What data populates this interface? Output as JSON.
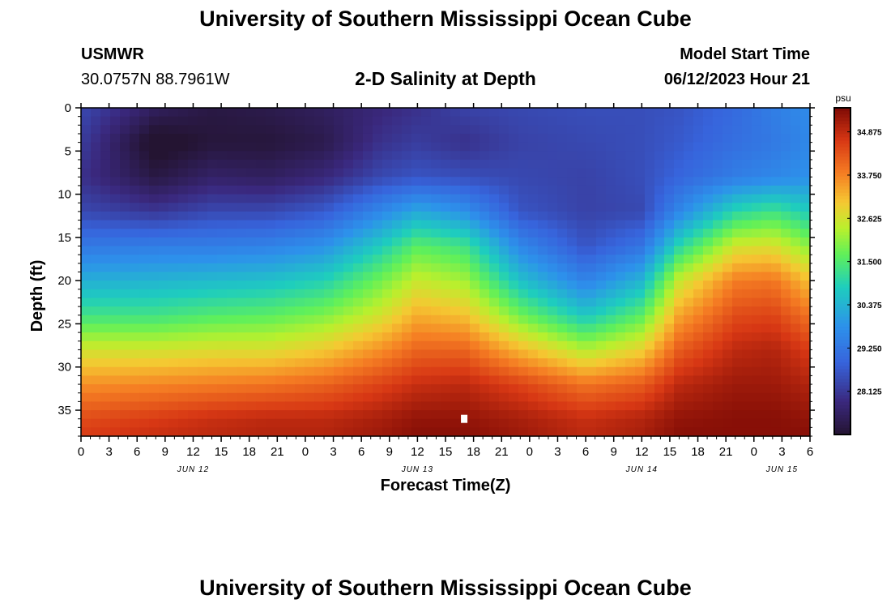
{
  "header": {
    "title": "University of Southern Mississippi Ocean Cube",
    "station": "USMWR",
    "coords": "30.0757N  88.7961W",
    "plot_title": "2-D Salinity at Depth",
    "model_label": "Model Start Time",
    "model_time": "06/12/2023 Hour 21"
  },
  "footer": {
    "title": "University of Southern Mississippi Ocean Cube"
  },
  "chart_data": {
    "type": "heatmap",
    "xlabel": "Forecast Time(Z)",
    "ylabel": "Depth (ft)",
    "x_tick_labels": [
      "0",
      "3",
      "6",
      "9",
      "12",
      "15",
      "18",
      "21",
      "0",
      "3",
      "6",
      "9",
      "12",
      "15",
      "18",
      "21",
      "0",
      "3",
      "6",
      "9",
      "12",
      "15",
      "18",
      "21",
      "0",
      "3",
      "6"
    ],
    "date_labels": [
      {
        "label": "JUN 12",
        "tick_index": 4
      },
      {
        "label": "JUN 13",
        "tick_index": 12
      },
      {
        "label": "JUN 14",
        "tick_index": 20
      },
      {
        "label": "JUN 15",
        "tick_index": 25
      }
    ],
    "xlim_hours": [
      0,
      78
    ],
    "y_ticks": [
      0,
      5,
      10,
      15,
      20,
      25,
      30,
      35
    ],
    "ylim": [
      0,
      38
    ],
    "y_inverted": true,
    "colorbar": {
      "unit": "psu",
      "ticks": [
        "34.875",
        "33.750",
        "32.625",
        "31.500",
        "30.375",
        "29.250",
        "28.125"
      ],
      "range": [
        27.0,
        35.5
      ]
    },
    "marker": {
      "hour": 41,
      "depth": 36
    },
    "z_profiles": {
      "hours": [
        0,
        8,
        14,
        20,
        26,
        32,
        36,
        41,
        47,
        54,
        60,
        64,
        70,
        74,
        78
      ],
      "depths": [
        0,
        4,
        8,
        12,
        16,
        20,
        24,
        28,
        32,
        36,
        38
      ],
      "rows": [
        [
          28.4,
          27.5,
          27.2,
          27.3,
          27.5,
          27.8,
          28.0,
          28.3,
          28.4,
          28.5,
          28.5,
          28.6,
          29.0,
          29.4,
          29.7
        ],
        [
          28.2,
          26.8,
          27.1,
          27.1,
          27.3,
          28.0,
          28.2,
          28.0,
          28.3,
          28.4,
          28.5,
          28.7,
          29.1,
          29.3,
          29.6
        ],
        [
          28.0,
          27.2,
          27.6,
          27.5,
          27.8,
          28.4,
          28.6,
          28.5,
          28.4,
          28.3,
          28.5,
          28.9,
          29.4,
          29.6,
          29.8
        ],
        [
          28.4,
          28.1,
          28.4,
          28.4,
          28.7,
          29.6,
          30.2,
          29.8,
          28.6,
          28.3,
          28.4,
          29.6,
          31.0,
          31.3,
          30.8
        ],
        [
          29.3,
          29.4,
          29.4,
          29.5,
          29.8,
          30.8,
          31.6,
          31.3,
          29.6,
          28.6,
          29.2,
          31.0,
          32.6,
          32.7,
          32.0
        ],
        [
          30.3,
          30.4,
          30.5,
          30.6,
          30.9,
          31.8,
          32.5,
          32.2,
          30.6,
          29.5,
          30.4,
          32.5,
          33.8,
          33.9,
          33.1
        ],
        [
          31.3,
          31.3,
          31.5,
          31.6,
          31.9,
          32.6,
          33.3,
          33.1,
          31.8,
          30.7,
          31.6,
          33.4,
          34.4,
          34.5,
          33.9
        ],
        [
          32.6,
          32.6,
          32.7,
          32.7,
          33.0,
          33.6,
          34.1,
          34.1,
          33.2,
          32.3,
          32.9,
          34.2,
          34.9,
          35.0,
          34.6
        ],
        [
          33.6,
          33.7,
          33.8,
          33.9,
          34.1,
          34.5,
          34.8,
          34.9,
          34.5,
          33.9,
          34.2,
          34.9,
          35.2,
          35.2,
          35.0
        ],
        [
          34.4,
          34.6,
          34.8,
          34.9,
          34.9,
          35.1,
          35.3,
          35.3,
          35.1,
          34.8,
          35.0,
          35.3,
          35.4,
          35.4,
          35.3
        ],
        [
          34.6,
          34.8,
          34.9,
          35.0,
          35.0,
          35.2,
          35.4,
          35.4,
          35.2,
          34.9,
          35.1,
          35.4,
          35.4,
          35.4,
          35.4
        ]
      ]
    }
  }
}
